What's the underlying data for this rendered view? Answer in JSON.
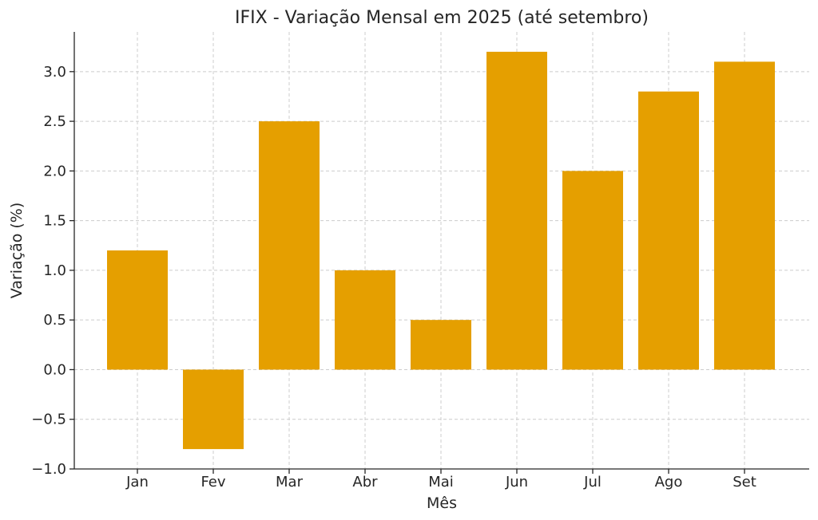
{
  "chart_data": {
    "type": "bar",
    "title": "IFIX - Variação Mensal em 2025 (até setembro)",
    "xlabel": "Mês",
    "ylabel": "Variação (%)",
    "categories": [
      "Jan",
      "Fev",
      "Mar",
      "Abr",
      "Mai",
      "Jun",
      "Jul",
      "Ago",
      "Set"
    ],
    "values": [
      1.2,
      -0.8,
      2.5,
      1.0,
      0.5,
      3.2,
      2.0,
      2.8,
      3.1
    ],
    "ylim": [
      -1.0,
      3.4
    ],
    "yticks": [
      "−1.0",
      "−0.5",
      "0.0",
      "0.5",
      "1.0",
      "1.5",
      "2.0",
      "2.5",
      "3.0"
    ],
    "ytick_values": [
      -1.0,
      -0.5,
      0.0,
      0.5,
      1.0,
      1.5,
      2.0,
      2.5,
      3.0
    ],
    "grid": true,
    "bar_color": "#e59f00"
  }
}
